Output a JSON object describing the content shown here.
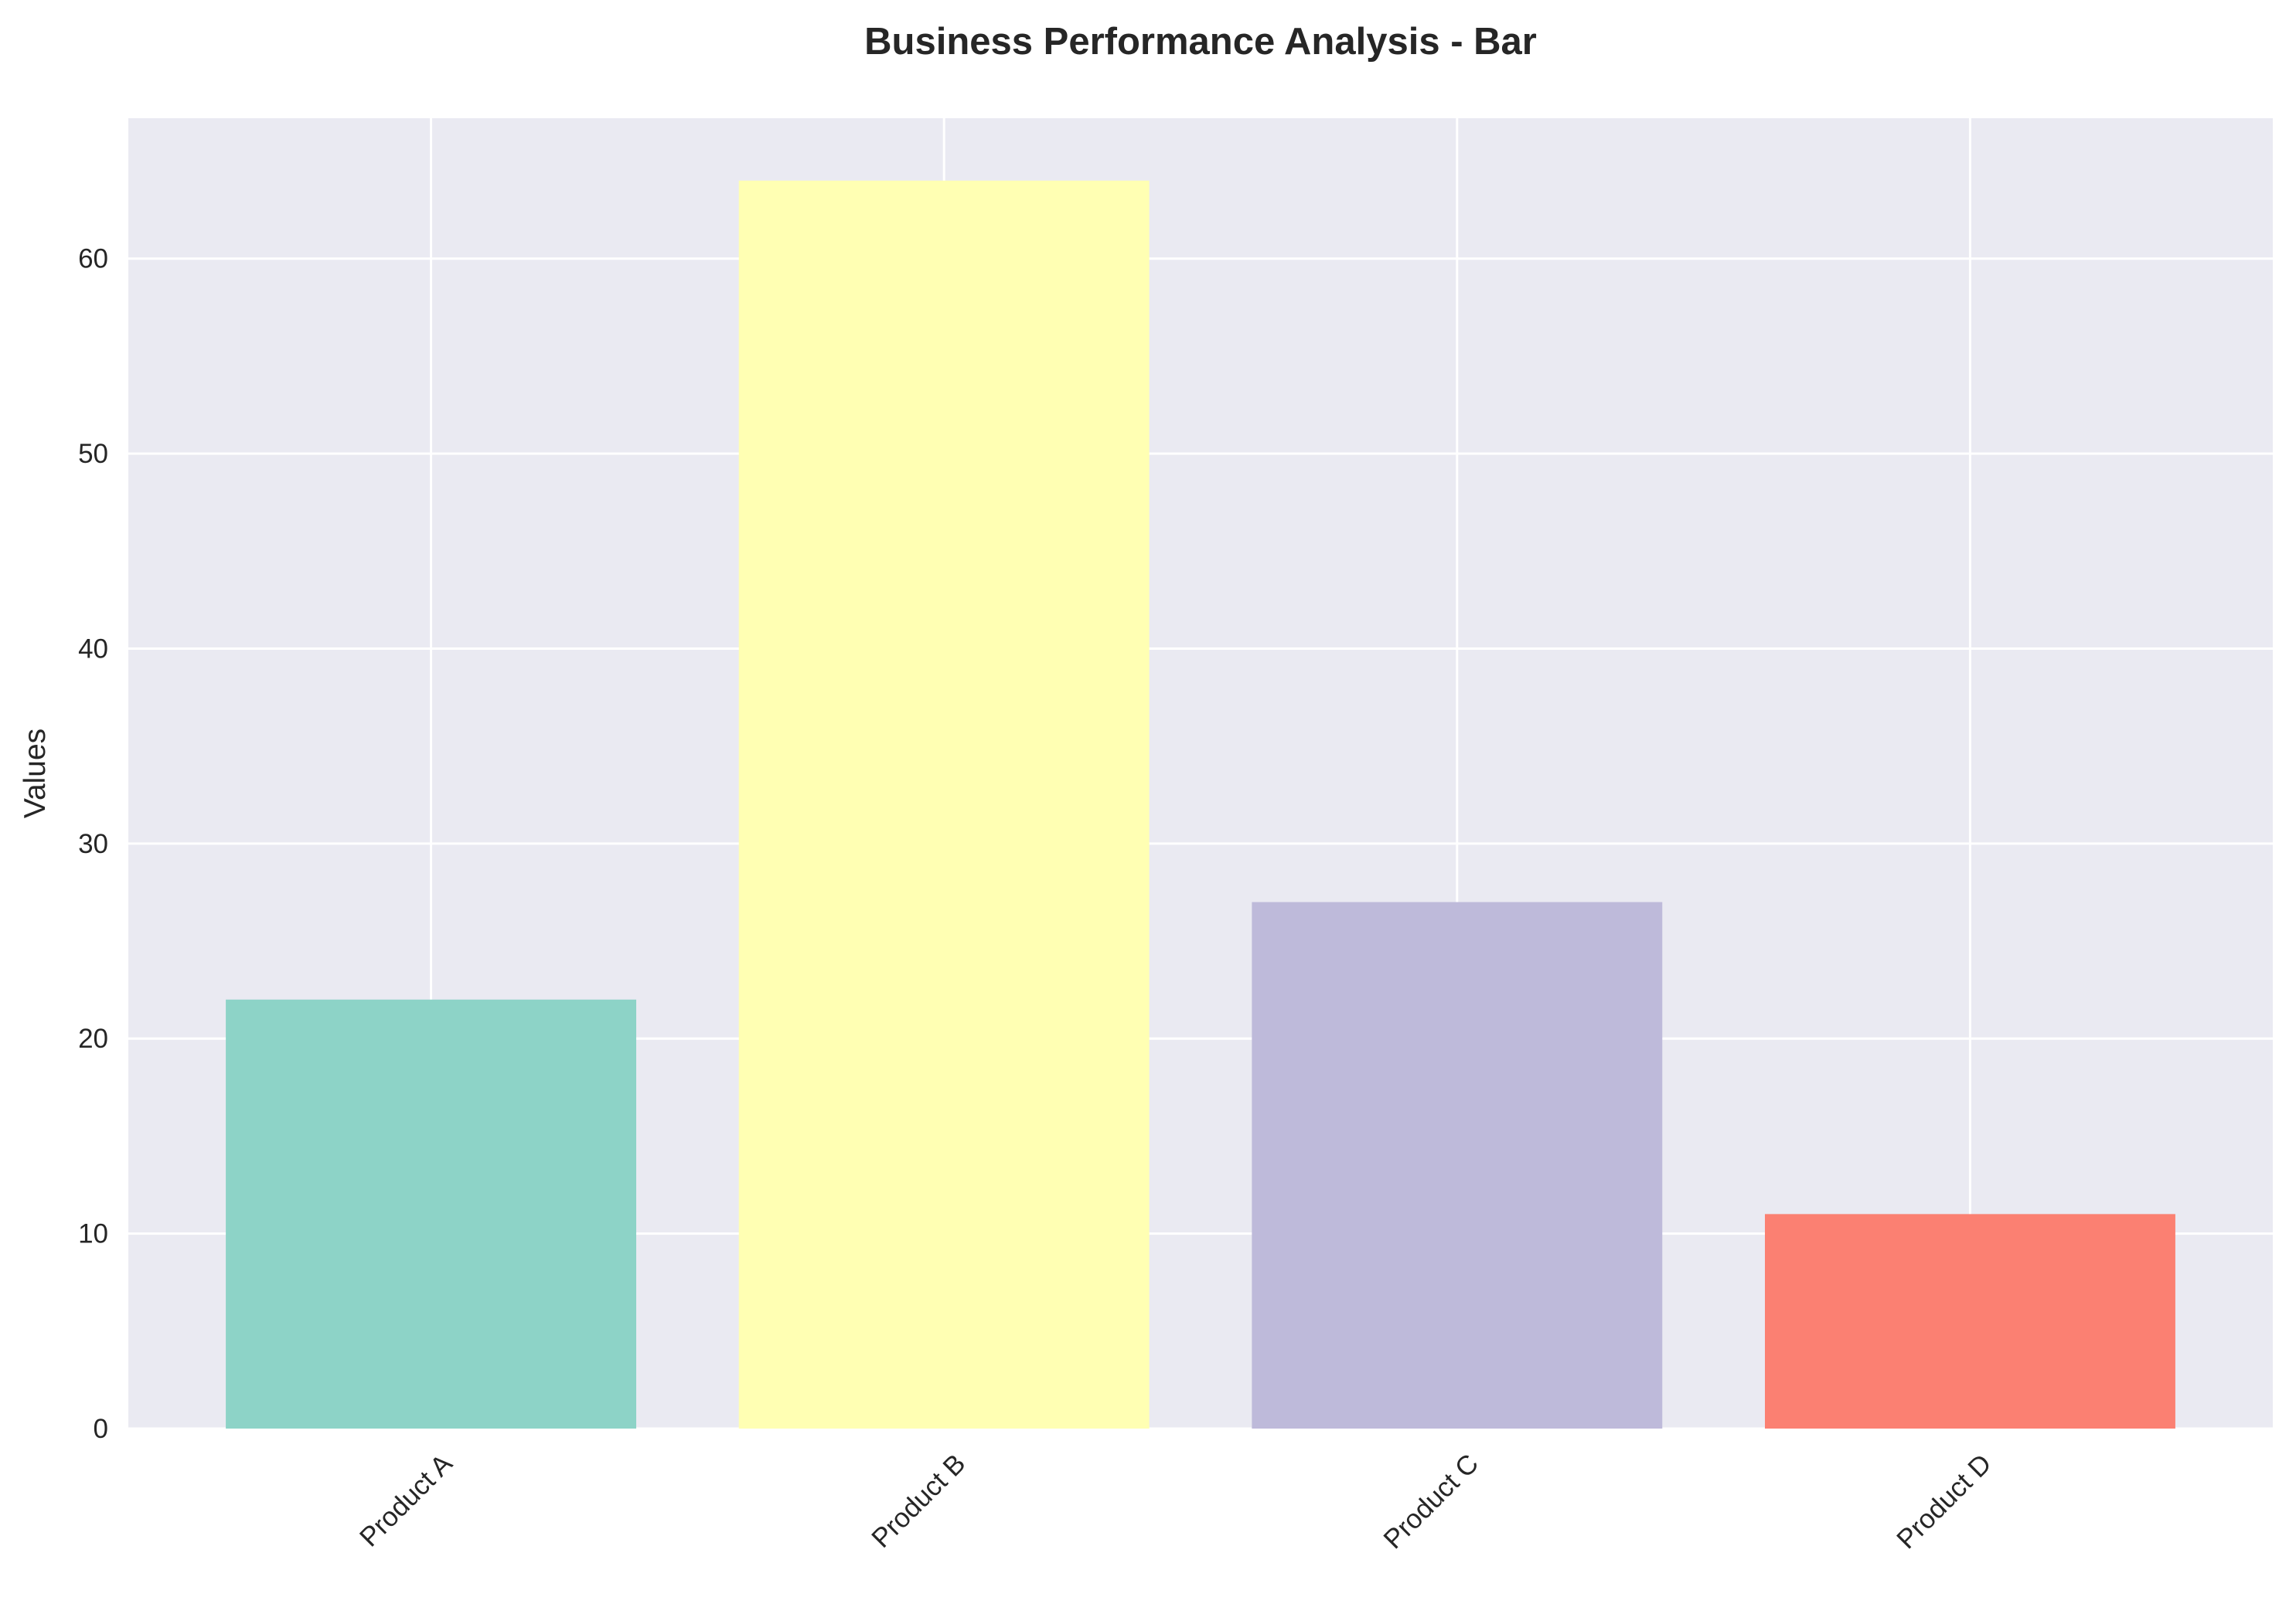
{
  "chart_data": {
    "type": "bar",
    "title": "Business Performance Analysis - Bar",
    "xlabel": "",
    "ylabel": "Values",
    "categories": [
      "Product A",
      "Product B",
      "Product C",
      "Product D"
    ],
    "values": [
      22,
      64,
      27,
      11
    ],
    "colors": [
      "#8dd3c7",
      "#ffffb3",
      "#bebada",
      "#fb8072"
    ],
    "ylim": [
      0,
      67.2
    ],
    "yticks": [
      0,
      10,
      20,
      30,
      40,
      50,
      60
    ],
    "ytick_labels": [
      "0",
      "10",
      "20",
      "30",
      "40",
      "50",
      "60"
    ],
    "grid": true,
    "x_tick_rotation_deg": 45,
    "style": {
      "plot_background": "#eaeaf2",
      "grid_color": "#ffffff",
      "text_color": "#262626"
    }
  }
}
